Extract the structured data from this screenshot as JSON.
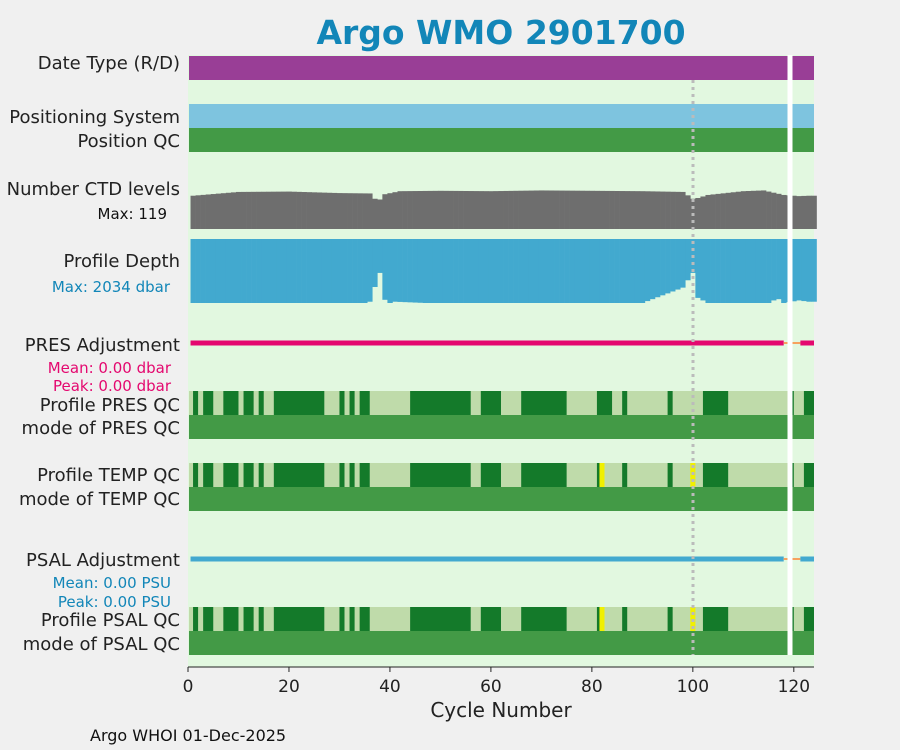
{
  "chart_data": {
    "type": "timeline",
    "title": "Argo WMO 2901700",
    "xlabel": "Cycle Number",
    "xlim": [
      0,
      124
    ],
    "x_ticks": [
      0,
      20,
      40,
      60,
      80,
      100,
      120
    ],
    "missing_cycle": 119,
    "reference_cycle": 100,
    "footer": "Argo WHOI 01-Dec-2025",
    "max_ctd_levels_label": "Max: 119",
    "max_profile_depth_label": "Max: 2034 dbar",
    "pres_mean_label": "Mean: 0.00 dbar",
    "pres_peak_label": "Peak: 0.00 dbar",
    "psal_mean_label": "Mean: 0.00 PSU",
    "psal_peak_label": "Peak: 0.00 PSU",
    "rows": {
      "date_type": "Date Type (R/D)",
      "positioning_system": "Positioning System",
      "position_qc": "Position QC",
      "ctd_levels": "Number CTD levels",
      "profile_depth": "Profile Depth",
      "pres_adjustment": "PRES Adjustment",
      "profile_pres_qc": "Profile PRES QC",
      "mode_pres_qc": "mode of PRES QC",
      "profile_temp_qc": "Profile TEMP QC",
      "mode_temp_qc": "mode of TEMP QC",
      "psal_adjustment": "PSAL Adjustment",
      "profile_psal_qc": "Profile PSAL QC",
      "mode_psal_qc": "mode of PSAL QC"
    },
    "ctd_levels_max": 119,
    "ctd_levels": [
      [
        1,
        88
      ],
      [
        10,
        98
      ],
      [
        20,
        99
      ],
      [
        30,
        95
      ],
      [
        36,
        94
      ],
      [
        37,
        80
      ],
      [
        38,
        78
      ],
      [
        39,
        92
      ],
      [
        42,
        100
      ],
      [
        50,
        101
      ],
      [
        60,
        100
      ],
      [
        70,
        102
      ],
      [
        80,
        101
      ],
      [
        90,
        100
      ],
      [
        98,
        98
      ],
      [
        100,
        80
      ],
      [
        101,
        82
      ],
      [
        103,
        90
      ],
      [
        110,
        100
      ],
      [
        114,
        102
      ],
      [
        118,
        90
      ],
      [
        121,
        87
      ],
      [
        123,
        88
      ]
    ],
    "depth_max_dbar": 2034,
    "profile_depth_fraction": [
      [
        1,
        1.0
      ],
      [
        35,
        1.0
      ],
      [
        36,
        0.98
      ],
      [
        37,
        0.75
      ],
      [
        38,
        0.53
      ],
      [
        39,
        0.95
      ],
      [
        40,
        1.0
      ],
      [
        41,
        0.98
      ],
      [
        47,
        1.0
      ],
      [
        55,
        1.0
      ],
      [
        65,
        1.0
      ],
      [
        78,
        1.0
      ],
      [
        90,
        1.0
      ],
      [
        98,
        0.76
      ],
      [
        100,
        0.53
      ],
      [
        101,
        0.92
      ],
      [
        103,
        1.0
      ],
      [
        115,
        1.0
      ],
      [
        116,
        0.96
      ],
      [
        117,
        0.94
      ],
      [
        118,
        1.0
      ],
      [
        121,
        0.96
      ],
      [
        123,
        0.98
      ]
    ],
    "pres_adjustment_mean_dbar": 0.0,
    "psal_adjustment_mean_psu": 0.0,
    "qc_colors": {
      "good": "#147a2a",
      "light": "#bfdbaa",
      "mode": "#439a46",
      "flag": "#f0f000"
    },
    "profile_pres_qc_good_segments": [
      [
        1,
        2
      ],
      [
        3,
        5
      ],
      [
        7,
        10
      ],
      [
        11,
        13
      ],
      [
        14,
        15
      ],
      [
        17,
        27
      ],
      [
        30,
        31
      ],
      [
        32,
        33
      ],
      [
        34,
        36
      ],
      [
        44,
        56
      ],
      [
        58,
        62
      ],
      [
        66,
        75
      ],
      [
        81,
        84
      ],
      [
        86,
        87
      ],
      [
        95,
        96
      ],
      [
        102,
        107
      ],
      [
        119,
        120
      ],
      [
        122,
        124
      ]
    ],
    "profile_temp_qc_good_segments": [
      [
        1,
        2
      ],
      [
        3,
        5
      ],
      [
        7,
        10
      ],
      [
        11,
        13
      ],
      [
        14,
        15
      ],
      [
        17,
        27
      ],
      [
        30,
        31
      ],
      [
        32,
        33
      ],
      [
        34,
        36
      ],
      [
        44,
        56
      ],
      [
        58,
        62
      ],
      [
        66,
        75
      ],
      [
        81,
        82
      ],
      [
        86,
        87
      ],
      [
        95,
        96
      ],
      [
        102,
        107
      ],
      [
        119,
        120
      ],
      [
        122,
        124
      ]
    ],
    "profile_temp_qc_flag_cycles": [
      82,
      100
    ],
    "profile_psal_qc_good_segments": [
      [
        1,
        2
      ],
      [
        3,
        5
      ],
      [
        7,
        10
      ],
      [
        11,
        13
      ],
      [
        14,
        15
      ],
      [
        17,
        27
      ],
      [
        30,
        31
      ],
      [
        32,
        33
      ],
      [
        34,
        36
      ],
      [
        44,
        56
      ],
      [
        58,
        62
      ],
      [
        66,
        75
      ],
      [
        81,
        82
      ],
      [
        86,
        87
      ],
      [
        95,
        96
      ],
      [
        102,
        107
      ],
      [
        119,
        120
      ],
      [
        122,
        124
      ]
    ],
    "profile_psal_qc_flag_cycles": [
      82,
      100
    ],
    "colors": {
      "title": "#1286b8",
      "plot_bg": "#e2f8e0",
      "date_type": "#993e96",
      "positioning_system": "#7ec4df",
      "position_qc": "#439a46",
      "ctd_levels": "#6e6e6e",
      "profile_depth": "#42a9cf",
      "pres_adjustment": "#e4086f",
      "psal_adjustment": "#42a9cf",
      "adjustment_gap": "#f6a25e",
      "pres_text": "#e4086f",
      "psal_text": "#1286b8",
      "depth_text": "#1286b8"
    }
  }
}
